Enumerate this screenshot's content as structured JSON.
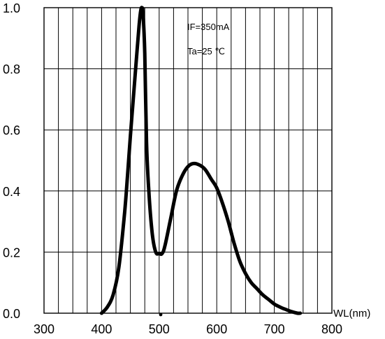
{
  "chart_data": {
    "type": "line",
    "title": "",
    "xlabel": "WL(nm)",
    "ylabel": "",
    "xlim": [
      300,
      800
    ],
    "ylim": [
      0,
      1.0
    ],
    "x_ticks": [
      300,
      400,
      500,
      600,
      700,
      800
    ],
    "y_ticks": [
      "0.0",
      "0.2",
      "0.4",
      "0.6",
      "0.8",
      "1.0"
    ],
    "vertical_grid_step": 25,
    "grid": true,
    "annotations": [
      "IF=350mA",
      "Ta=25 ℃"
    ],
    "series": [
      {
        "x": [
          400,
          410,
          420,
          430,
          440,
          445,
          450,
          455,
          460,
          465,
          468,
          470,
          472,
          475,
          478,
          482,
          488,
          494,
          500,
          505,
          510,
          520,
          530,
          540,
          550,
          560,
          570,
          580,
          590,
          600,
          610,
          620,
          630,
          640,
          650,
          660,
          670,
          680,
          690,
          700,
          710,
          720,
          730,
          740,
          745
        ],
        "y": [
          0.0,
          0.02,
          0.06,
          0.15,
          0.33,
          0.45,
          0.58,
          0.7,
          0.82,
          0.94,
          0.99,
          1.0,
          0.98,
          0.85,
          0.56,
          0.4,
          0.26,
          0.2,
          0.195,
          0.195,
          0.22,
          0.31,
          0.4,
          0.45,
          0.48,
          0.49,
          0.485,
          0.47,
          0.44,
          0.41,
          0.36,
          0.3,
          0.23,
          0.17,
          0.13,
          0.1,
          0.08,
          0.06,
          0.045,
          0.03,
          0.02,
          0.012,
          0.005,
          0.0,
          0.0
        ]
      }
    ]
  }
}
